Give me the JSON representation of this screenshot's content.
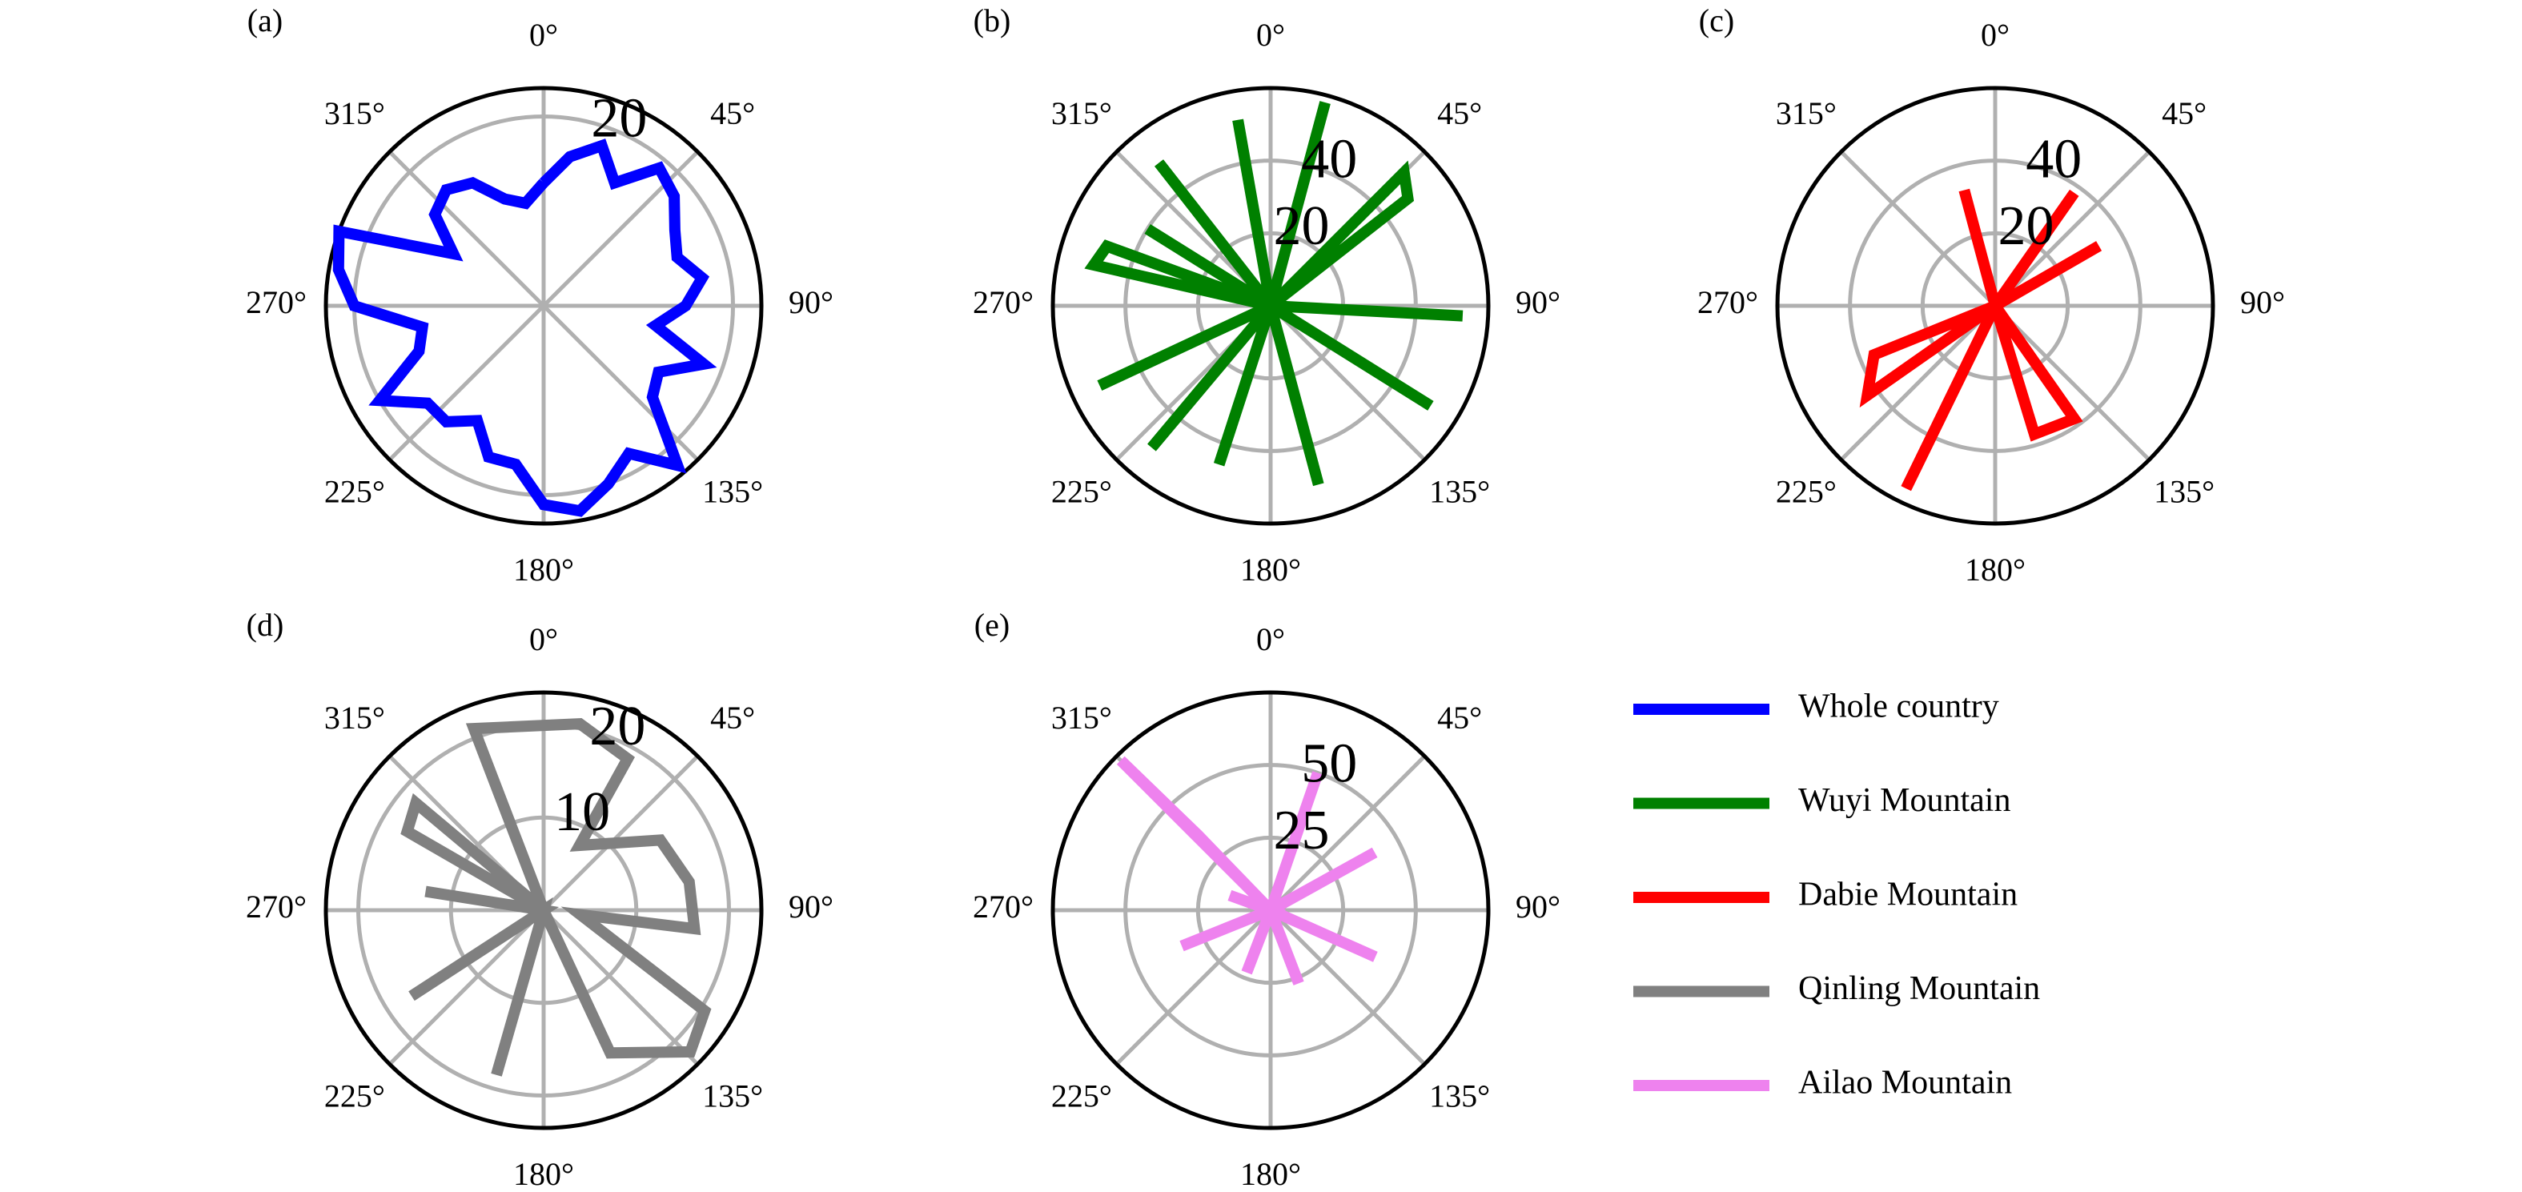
{
  "chart_data": [
    {
      "type": "polar",
      "label": "(a)",
      "rlim": [
        0,
        23
      ],
      "rticks": [
        20
      ],
      "thetaticks": [
        {
          "value": 0,
          "label": "0°"
        },
        {
          "value": 45,
          "label": "45°"
        },
        {
          "value": 90,
          "label": "90°"
        },
        {
          "value": 135,
          "label": "135°"
        },
        {
          "value": 180,
          "label": "180°"
        },
        {
          "value": 225,
          "label": "225°"
        },
        {
          "value": 270,
          "label": "270°"
        },
        {
          "value": 315,
          "label": "315°"
        }
      ],
      "series": [
        {
          "name": "Whole country",
          "color": "#0000ff",
          "x": [
            0,
            10,
            20,
            30,
            40,
            50,
            60,
            70,
            80,
            90,
            100,
            110,
            120,
            130,
            140,
            150,
            160,
            170,
            180,
            190,
            200,
            210,
            220,
            230,
            240,
            250,
            260,
            270,
            280,
            290,
            300,
            310,
            320,
            330,
            340,
            350,
            360
          ],
          "values": [
            13,
            16,
            18,
            15,
            19,
            18,
            16,
            15,
            17,
            15,
            12,
            18,
            14,
            15,
            22,
            18,
            20,
            22,
            21,
            17,
            17,
            14,
            16,
            16,
            20,
            14,
            13,
            20,
            22,
            23,
            11,
            15,
            16,
            15,
            12,
            11,
            13
          ]
        }
      ]
    },
    {
      "type": "polar",
      "label": "(b)",
      "rlim": [
        0,
        60
      ],
      "rticks": [
        20,
        40
      ],
      "thetaticks": [
        {
          "value": 0,
          "label": "0°"
        },
        {
          "value": 45,
          "label": "45°"
        },
        {
          "value": 90,
          "label": "90°"
        },
        {
          "value": 135,
          "label": "135°"
        },
        {
          "value": 180,
          "label": "180°"
        },
        {
          "value": 225,
          "label": "225°"
        },
        {
          "value": 270,
          "label": "270°"
        },
        {
          "value": 315,
          "label": "315°"
        }
      ],
      "series": [
        {
          "name": "Wuyi Mountain",
          "color": "#008000",
          "x": [
            350,
            350,
            350,
            15,
            15,
            45,
            52,
            52,
            93,
            93,
            122,
            122,
            165,
            165,
            198,
            198,
            220,
            220,
            245,
            245,
            283,
            290,
            290,
            302,
            302,
            322,
            322
          ],
          "values": [
            0,
            52,
            0,
            58,
            0,
            52,
            48,
            0,
            53,
            0,
            52,
            0,
            51,
            0,
            46,
            0,
            51,
            0,
            52,
            0,
            50,
            48,
            0,
            40,
            0,
            50,
            0
          ]
        }
      ]
    },
    {
      "type": "polar",
      "label": "(c)",
      "rlim": [
        0,
        60
      ],
      "rticks": [
        20,
        40
      ],
      "thetaticks": [
        {
          "value": 0,
          "label": "0°"
        },
        {
          "value": 45,
          "label": "45°"
        },
        {
          "value": 90,
          "label": "90°"
        },
        {
          "value": 135,
          "label": "135°"
        },
        {
          "value": 180,
          "label": "180°"
        },
        {
          "value": 225,
          "label": "225°"
        },
        {
          "value": 270,
          "label": "270°"
        },
        {
          "value": 315,
          "label": "315°"
        }
      ],
      "series": [
        {
          "name": "Dabie Mountain",
          "color": "#ff0000",
          "x": [
            345,
            345,
            345,
            35,
            35,
            60,
            60,
            145,
            163,
            163,
            206,
            206,
            235,
            248,
            248
          ],
          "values": [
            0,
            33,
            0,
            38,
            0,
            33,
            0,
            38,
            37,
            0,
            56,
            0,
            43,
            36,
            0
          ]
        }
      ]
    },
    {
      "type": "polar",
      "label": "(d)",
      "rlim": [
        0,
        23.5
      ],
      "rticks": [
        10,
        20
      ],
      "thetaticks": [
        {
          "value": 0,
          "label": "0°"
        },
        {
          "value": 45,
          "label": "45°"
        },
        {
          "value": 90,
          "label": "90°"
        },
        {
          "value": 135,
          "label": "135°"
        },
        {
          "value": 180,
          "label": "180°"
        },
        {
          "value": 225,
          "label": "225°"
        },
        {
          "value": 270,
          "label": "270°"
        },
        {
          "value": 315,
          "label": "315°"
        }
      ],
      "series": [
        {
          "name": "Qinling Mountain",
          "color": "#808080",
          "x": [
            339,
            339,
            11,
            29,
            29,
            59,
            79,
            97,
            97,
            122,
            134,
            155,
            155,
            196,
            196,
            237,
            237,
            279,
            279,
            300,
            310,
            310
          ],
          "values": [
            0,
            21,
            20.5,
            18.7,
            8,
            14.7,
            16,
            16.4,
            4,
            20.5,
            22,
            17,
            0,
            18.5,
            0,
            17,
            0,
            12.9,
            0,
            17,
            18,
            0
          ]
        }
      ]
    },
    {
      "type": "polar",
      "label": "(e)",
      "rlim": [
        0,
        75
      ],
      "rticks": [
        25,
        50
      ],
      "thetaticks": [
        {
          "value": 0,
          "label": "0°"
        },
        {
          "value": 45,
          "label": "45°"
        },
        {
          "value": 90,
          "label": "90°"
        },
        {
          "value": 135,
          "label": "135°"
        },
        {
          "value": 180,
          "label": "180°"
        },
        {
          "value": 225,
          "label": "225°"
        },
        {
          "value": 270,
          "label": "270°"
        },
        {
          "value": 315,
          "label": "315°"
        }
      ],
      "series": [
        {
          "name": "Ailao Mountain",
          "color": "#ee82ee",
          "x": [
            315,
            315,
            316,
            316,
            19,
            19,
            61,
            61,
            114,
            114,
            159,
            159,
            201,
            201,
            248,
            248,
            290,
            290
          ],
          "values": [
            0,
            73,
            36,
            0,
            50,
            0,
            41,
            0,
            39.5,
            0,
            27,
            0,
            23,
            0,
            33,
            0,
            15,
            0
          ]
        }
      ]
    }
  ]
}
